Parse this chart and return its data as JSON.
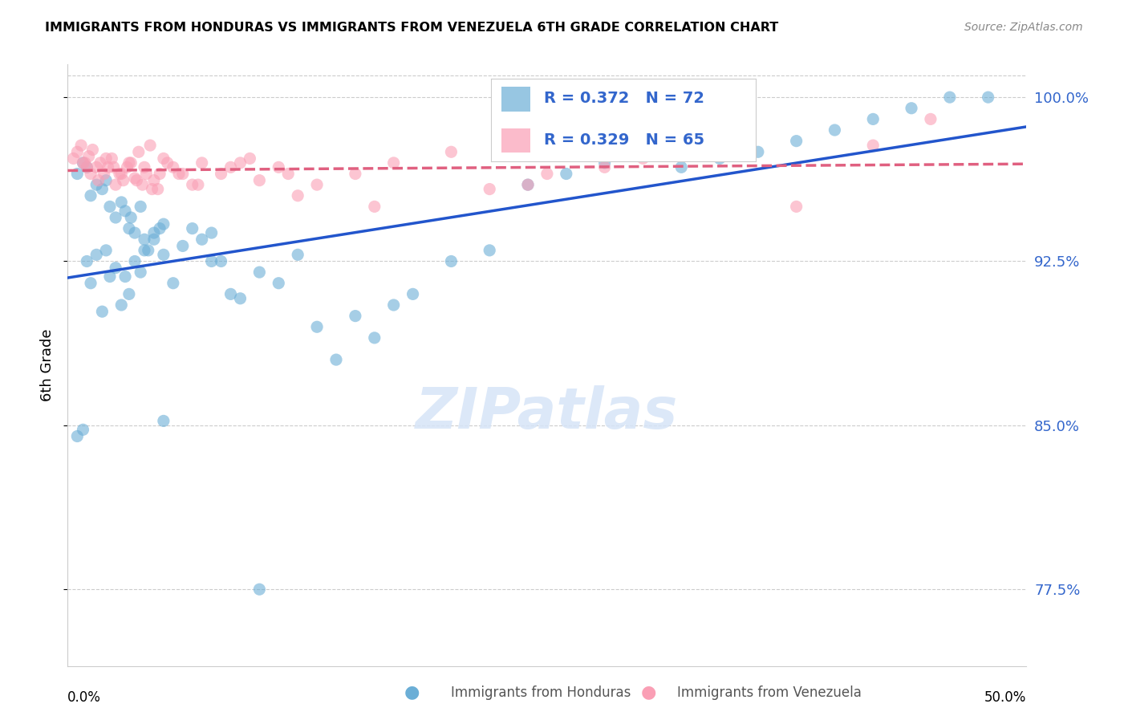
{
  "title": "IMMIGRANTS FROM HONDURAS VS IMMIGRANTS FROM VENEZUELA 6TH GRADE CORRELATION CHART",
  "source": "Source: ZipAtlas.com",
  "ylabel": "6th Grade",
  "yticks": [
    77.5,
    85.0,
    92.5,
    100.0
  ],
  "ytick_labels": [
    "77.5%",
    "85.0%",
    "92.5%",
    "100.0%"
  ],
  "xmin": 0.0,
  "xmax": 0.5,
  "ymin": 74.0,
  "ymax": 101.5,
  "honduras_color": "#6baed6",
  "venezuela_color": "#fa9fb5",
  "honduras_line_color": "#2255cc",
  "venezuela_line_color": "#e06080",
  "legend_text_color": "#3366cc",
  "watermark": "ZIPatlas",
  "honduras_x": [
    0.005,
    0.008,
    0.01,
    0.012,
    0.015,
    0.018,
    0.02,
    0.022,
    0.025,
    0.028,
    0.03,
    0.032,
    0.033,
    0.035,
    0.038,
    0.04,
    0.042,
    0.045,
    0.048,
    0.05,
    0.01,
    0.015,
    0.02,
    0.025,
    0.03,
    0.035,
    0.04,
    0.045,
    0.05,
    0.055,
    0.06,
    0.065,
    0.07,
    0.075,
    0.08,
    0.085,
    0.09,
    0.1,
    0.11,
    0.12,
    0.13,
    0.14,
    0.15,
    0.16,
    0.17,
    0.18,
    0.2,
    0.22,
    0.24,
    0.26,
    0.28,
    0.3,
    0.32,
    0.34,
    0.36,
    0.38,
    0.4,
    0.42,
    0.44,
    0.46,
    0.005,
    0.008,
    0.012,
    0.018,
    0.022,
    0.028,
    0.032,
    0.038,
    0.05,
    0.075,
    0.1,
    0.48
  ],
  "honduras_y": [
    96.5,
    97.0,
    96.8,
    95.5,
    96.0,
    95.8,
    96.2,
    95.0,
    94.5,
    95.2,
    94.8,
    94.0,
    94.5,
    93.8,
    95.0,
    93.5,
    93.0,
    93.8,
    94.0,
    94.2,
    92.5,
    92.8,
    93.0,
    92.2,
    91.8,
    92.5,
    93.0,
    93.5,
    92.8,
    91.5,
    93.2,
    94.0,
    93.5,
    93.8,
    92.5,
    91.0,
    90.8,
    92.0,
    91.5,
    92.8,
    89.5,
    88.0,
    90.0,
    89.0,
    90.5,
    91.0,
    92.5,
    93.0,
    96.0,
    96.5,
    97.0,
    97.5,
    96.8,
    97.2,
    97.5,
    98.0,
    98.5,
    99.0,
    99.5,
    100.0,
    84.5,
    84.8,
    91.5,
    90.2,
    91.8,
    90.5,
    91.0,
    92.0,
    85.2,
    92.5,
    77.5,
    100.0
  ],
  "venezuela_x": [
    0.003,
    0.005,
    0.007,
    0.009,
    0.011,
    0.013,
    0.015,
    0.017,
    0.019,
    0.021,
    0.023,
    0.025,
    0.027,
    0.029,
    0.031,
    0.033,
    0.035,
    0.037,
    0.039,
    0.041,
    0.043,
    0.045,
    0.047,
    0.05,
    0.055,
    0.06,
    0.065,
    0.07,
    0.08,
    0.09,
    0.1,
    0.11,
    0.12,
    0.13,
    0.15,
    0.17,
    0.2,
    0.22,
    0.25,
    0.28,
    0.3,
    0.35,
    0.38,
    0.42,
    0.01,
    0.008,
    0.012,
    0.016,
    0.02,
    0.024,
    0.028,
    0.032,
    0.036,
    0.04,
    0.044,
    0.048,
    0.052,
    0.058,
    0.068,
    0.085,
    0.095,
    0.115,
    0.16,
    0.24,
    0.45
  ],
  "venezuela_y": [
    97.2,
    97.5,
    97.8,
    97.0,
    97.3,
    97.6,
    96.8,
    97.0,
    96.5,
    96.8,
    97.2,
    96.0,
    96.5,
    96.2,
    96.8,
    97.0,
    96.3,
    97.5,
    96.0,
    96.5,
    97.8,
    96.2,
    95.8,
    97.2,
    96.8,
    96.5,
    96.0,
    97.0,
    96.5,
    97.0,
    96.2,
    96.8,
    95.5,
    96.0,
    96.5,
    97.0,
    97.5,
    95.8,
    96.5,
    96.8,
    97.2,
    97.5,
    95.0,
    97.8,
    96.8,
    97.0,
    96.5,
    96.2,
    97.2,
    96.8,
    96.5,
    97.0,
    96.2,
    96.8,
    95.8,
    96.5,
    97.0,
    96.5,
    96.0,
    96.8,
    97.2,
    96.5,
    95.0,
    96.0,
    99.0
  ]
}
